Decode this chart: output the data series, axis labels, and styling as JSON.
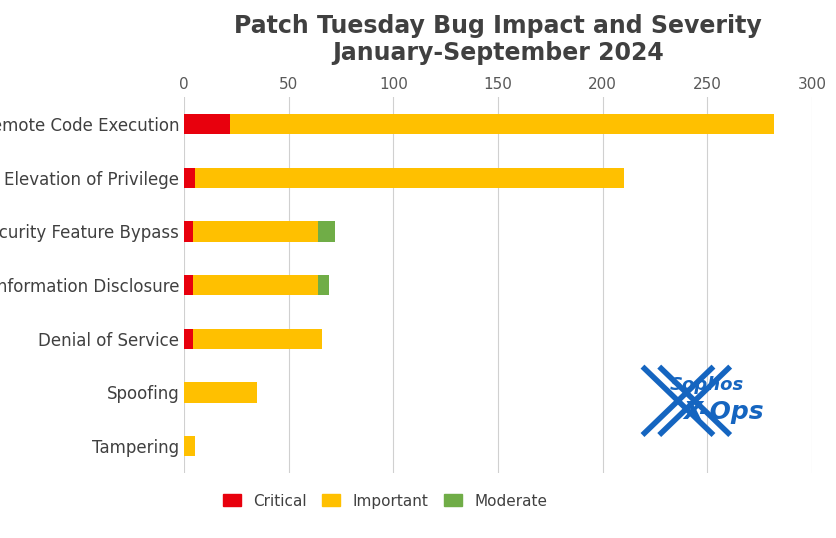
{
  "title_line1": "Patch Tuesday Bug Impact and Severity",
  "title_line2": "January-September 2024",
  "categories": [
    "Remote Code Execution",
    "Elevation of Privilege",
    "Security Feature Bypass",
    "Information Disclosure",
    "Denial of Service",
    "Spoofing",
    "Tampering"
  ],
  "critical": [
    22,
    5,
    4,
    4,
    4,
    0,
    0
  ],
  "important": [
    260,
    205,
    60,
    60,
    62,
    35,
    5
  ],
  "moderate": [
    0,
    0,
    8,
    5,
    0,
    0,
    0
  ],
  "colors": {
    "critical": "#e8000d",
    "important": "#ffc000",
    "moderate": "#70ad47"
  },
  "xlim": [
    0,
    300
  ],
  "xticks": [
    0,
    50,
    100,
    150,
    200,
    250,
    300
  ],
  "title_fontsize": 17,
  "label_fontsize": 12,
  "tick_fontsize": 11,
  "legend_fontsize": 11,
  "title_color": "#404040",
  "label_color": "#404040",
  "tick_color": "#595959",
  "background_color": "#ffffff",
  "grid_color": "#d0d0d0",
  "bar_height": 0.38
}
